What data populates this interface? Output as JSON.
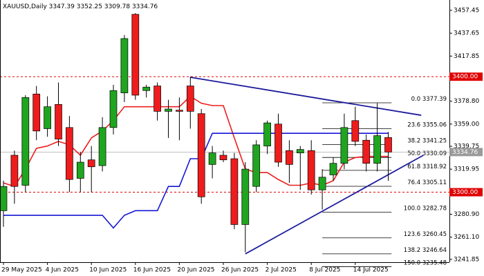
{
  "chart_data": {
    "type": "candlestick",
    "title": "XAUUSD,Daily",
    "categories": [
      "29 May 2025",
      null,
      null,
      null,
      "4 Jun 2025",
      null,
      null,
      null,
      "10 Jun 2025",
      null,
      null,
      null,
      "16 Jun 2025",
      null,
      null,
      null,
      "20 Jun 2025",
      null,
      null,
      null,
      "26 Jun 2025",
      null,
      null,
      null,
      "2 Jul 2025",
      null,
      null,
      null,
      "8 Jul 2025",
      null,
      null,
      null,
      "14 Jul 2025",
      null,
      null,
      null
    ],
    "open": [
      3284,
      3332,
      3306,
      3385,
      3355,
      3376,
      3356,
      3312,
      3328,
      3323,
      3356,
      3386,
      3454,
      3388,
      3392,
      3370,
      3371,
      3392,
      3368,
      3324,
      3332,
      3329,
      3272,
      3305,
      3340,
      3359,
      3336,
      3334,
      3336,
      3302,
      3315,
      3325,
      3362,
      3345,
      3325,
      3347.39
    ],
    "high": [
      3310,
      3336,
      3384,
      3392,
      3383,
      3395,
      3366,
      3335,
      3340,
      3365,
      3393,
      3436,
      3455,
      3393,
      3395,
      3380,
      3382,
      3400,
      3372,
      3340,
      3336,
      3334,
      3326,
      3345,
      3362,
      3368,
      3345,
      3340,
      3345,
      3320,
      3330,
      3368,
      3374,
      3350,
      3377,
      3352.25
    ],
    "low": [
      3270,
      3290,
      3300,
      3345,
      3348,
      3340,
      3300,
      3300,
      3300,
      3318,
      3350,
      3378,
      3380,
      3382,
      3362,
      3347,
      3345,
      3355,
      3290,
      3312,
      3326,
      3268,
      3248,
      3300,
      3333,
      3322,
      3308,
      3302,
      3298,
      3285,
      3310,
      3320,
      3340,
      3318,
      3318,
      3309.78
    ],
    "close": [
      3305,
      3305,
      3382,
      3353,
      3374,
      3346,
      3311,
      3326,
      3322,
      3356,
      3388,
      3433,
      3384,
      3391,
      3370,
      3372,
      3370,
      3370,
      3296,
      3334,
      3328,
      3272,
      3320,
      3341,
      3360,
      3326,
      3324,
      3337,
      3302,
      3313,
      3325,
      3356,
      3344,
      3325,
      3349,
      3334.76
    ],
    "up_color": "#1fa51f",
    "down_color": "#ee1c1c",
    "series": [
      {
        "color": "#ee1c1c",
        "values": [
          3308,
          3305,
          3320,
          3338,
          3340,
          3344,
          3341,
          3332,
          3347,
          3353,
          3362,
          3374,
          3374,
          3374,
          3374,
          3374,
          3374,
          3383,
          3377,
          3375,
          3375,
          3347,
          3320,
          3317,
          3317,
          3311,
          3306,
          3306,
          3308,
          3306,
          3310,
          3326,
          3330,
          3331,
          3331,
          3331
        ]
      },
      {
        "color": "#1515d8",
        "values": [
          3280,
          3280,
          3280,
          3280,
          3280,
          3280,
          3280,
          3280,
          3280,
          3280,
          3269,
          3280,
          3284,
          3284,
          3284,
          3305,
          3305,
          3329,
          3329,
          3351,
          3351,
          3351,
          3351,
          3351,
          3351,
          3351,
          3351,
          3351,
          3351,
          3351,
          3351,
          3351,
          3351,
          3351,
          3351,
          3351
        ]
      }
    ],
    "trendlines": [
      {
        "color": "#1a1a9c",
        "x": [
          17,
          38
        ],
        "y": [
          3399.5,
          3366.6
        ]
      },
      {
        "color": "#1a1a9c",
        "x": [
          22,
          38.2
        ],
        "y": [
          3246.6,
          3332
        ]
      }
    ],
    "levels": [
      {
        "value": 3400,
        "label": "3400.00"
      },
      {
        "value": 3300,
        "label": "3300.00"
      }
    ],
    "level_color": "#e00000",
    "fibonacci": [
      {
        "ratio": "0.0",
        "price": 3377.39
      },
      {
        "ratio": "23.6",
        "price": 3355.06
      },
      {
        "ratio": "38.2",
        "price": 3341.25
      },
      {
        "ratio": "50.0",
        "price": 3330.09
      },
      {
        "ratio": "61.8",
        "price": 3318.92
      },
      {
        "ratio": "76.4",
        "price": 3305.11
      },
      {
        "ratio": "100.0",
        "price": 3282.78
      },
      {
        "ratio": "123.6",
        "price": 3260.45
      },
      {
        "ratio": "138.2",
        "price": 3246.64
      },
      {
        "ratio": "150.0",
        "price": 3235.48
      }
    ],
    "ylim": [
      3239.4,
      3466.4
    ],
    "yticks": [
      3457.45,
      3437.65,
      3417.85,
      {
        "value": 3378.8,
        "label": "3378.80"
      },
      {
        "value": 3359,
        "label": "3359.00"
      },
      3339.75,
      3319.95,
      {
        "value": 3280.9,
        "label": "3280.90"
      },
      {
        "value": 3261.1,
        "label": "3261.10"
      },
      3241.85
    ],
    "grid": false
  }
}
